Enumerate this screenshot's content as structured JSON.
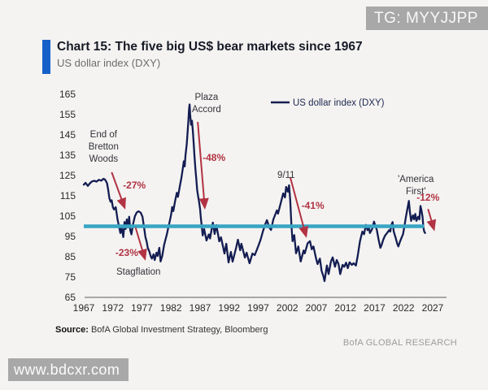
{
  "watermarks": {
    "top": "TG: MYYJJPP",
    "bottom": "www.bdcxr.com"
  },
  "chart_data": {
    "type": "line",
    "title": "Chart 15: The five big US$ bear markets since 1967",
    "subtitle": "US dollar index (DXY)",
    "legend": {
      "label": "US dollar index (DXY)",
      "position": "top-right"
    },
    "xlim": [
      1966.7,
      2029.5
    ],
    "ylim": [
      65,
      165
    ],
    "x_ticks": [
      1967,
      1972,
      1977,
      1982,
      1987,
      1992,
      1997,
      2002,
      2007,
      2012,
      2017,
      2022,
      2027
    ],
    "y_ticks": [
      65,
      75,
      85,
      95,
      105,
      115,
      125,
      135,
      145,
      155,
      165
    ],
    "grid": false,
    "baseline": {
      "value": 100,
      "x_start": 1967,
      "x_end": 2025.5
    },
    "series": [
      {
        "name": "US dollar index (DXY)",
        "color_key": "line",
        "points": [
          [
            1967.0,
            120.5
          ],
          [
            1967.3,
            121.4
          ],
          [
            1967.7,
            119.9
          ],
          [
            1968.0,
            121.0
          ],
          [
            1968.4,
            122.1
          ],
          [
            1968.8,
            122.4
          ],
          [
            1969.2,
            122.0
          ],
          [
            1969.6,
            122.9
          ],
          [
            1970.0,
            122.5
          ],
          [
            1970.4,
            123.4
          ],
          [
            1970.7,
            122.8
          ],
          [
            1971.0,
            121.2
          ],
          [
            1971.2,
            118.0
          ],
          [
            1971.4,
            113.8
          ],
          [
            1971.6,
            112.1
          ],
          [
            1971.8,
            112.8
          ],
          [
            1972.0,
            109.4
          ],
          [
            1972.2,
            108.3
          ],
          [
            1972.5,
            109.4
          ],
          [
            1972.8,
            103.4
          ],
          [
            1973.0,
            100.7
          ],
          [
            1973.3,
            96.7
          ],
          [
            1973.5,
            99.4
          ],
          [
            1973.8,
            94.7
          ],
          [
            1974.0,
            102.1
          ],
          [
            1974.2,
            98.7
          ],
          [
            1974.4,
            103.4
          ],
          [
            1974.6,
            99.4
          ],
          [
            1974.8,
            104.7
          ],
          [
            1975.0,
            98.0
          ],
          [
            1975.2,
            96.0
          ],
          [
            1975.5,
            101.5
          ],
          [
            1975.8,
            105.0
          ],
          [
            1976.1,
            106.8
          ],
          [
            1976.4,
            107.4
          ],
          [
            1976.8,
            106.7
          ],
          [
            1977.1,
            104.7
          ],
          [
            1977.4,
            98.7
          ],
          [
            1977.6,
            94.7
          ],
          [
            1977.8,
            92.7
          ],
          [
            1978.0,
            89.4
          ],
          [
            1978.3,
            87.4
          ],
          [
            1978.5,
            85.4
          ],
          [
            1978.7,
            84.1
          ],
          [
            1979.0,
            86.2
          ],
          [
            1979.2,
            83.4
          ],
          [
            1979.5,
            87.0
          ],
          [
            1979.7,
            85.4
          ],
          [
            1980.0,
            89.4
          ],
          [
            1980.2,
            82.7
          ],
          [
            1980.5,
            85.4
          ],
          [
            1980.8,
            90.7
          ],
          [
            1981.1,
            94.0
          ],
          [
            1981.3,
            96.1
          ],
          [
            1981.5,
            99.0
          ],
          [
            1981.7,
            101.4
          ],
          [
            1982.0,
            105.5
          ],
          [
            1982.2,
            109.5
          ],
          [
            1982.4,
            107.5
          ],
          [
            1982.7,
            112.5
          ],
          [
            1983.0,
            116.5
          ],
          [
            1983.2,
            114.5
          ],
          [
            1983.5,
            119.5
          ],
          [
            1983.8,
            124.0
          ],
          [
            1984.0,
            128.0
          ],
          [
            1984.2,
            132.0
          ],
          [
            1984.35,
            129.5
          ],
          [
            1984.5,
            135.0
          ],
          [
            1984.7,
            140.5
          ],
          [
            1984.85,
            146.0
          ],
          [
            1985.0,
            152.5
          ],
          [
            1985.1,
            157.5
          ],
          [
            1985.2,
            160.0
          ],
          [
            1985.3,
            155.0
          ],
          [
            1985.45,
            150.0
          ],
          [
            1985.6,
            152.0
          ],
          [
            1985.75,
            147.0
          ],
          [
            1985.9,
            141.0
          ],
          [
            1986.05,
            134.0
          ],
          [
            1986.2,
            128.0
          ],
          [
            1986.35,
            123.0
          ],
          [
            1986.5,
            118.0
          ],
          [
            1986.65,
            115.0
          ],
          [
            1986.8,
            112.5
          ],
          [
            1987.0,
            108.5
          ],
          [
            1987.15,
            103.5
          ],
          [
            1987.3,
            100.0
          ],
          [
            1987.45,
            95.5
          ],
          [
            1987.7,
            98.6
          ],
          [
            1988.1,
            93.0
          ],
          [
            1988.5,
            96.0
          ],
          [
            1988.7,
            94.0
          ],
          [
            1989.2,
            101.8
          ],
          [
            1989.5,
            96.2
          ],
          [
            1989.8,
            100.6
          ],
          [
            1990.3,
            92.6
          ],
          [
            1990.6,
            94.6
          ],
          [
            1991.2,
            86.6
          ],
          [
            1991.5,
            91.4
          ],
          [
            1991.9,
            82.2
          ],
          [
            1992.3,
            87.4
          ],
          [
            1992.6,
            82.6
          ],
          [
            1993.2,
            89.4
          ],
          [
            1993.5,
            93.4
          ],
          [
            1993.9,
            88.2
          ],
          [
            1994.1,
            91.4
          ],
          [
            1994.7,
            84.6
          ],
          [
            1995.0,
            87.0
          ],
          [
            1995.5,
            81.8
          ],
          [
            1996.0,
            86.6
          ],
          [
            1996.4,
            85.8
          ],
          [
            1997.0,
            90.2
          ],
          [
            1997.4,
            93.4
          ],
          [
            1997.8,
            97.4
          ],
          [
            1998.2,
            101.0
          ],
          [
            1998.5,
            103.0
          ],
          [
            1998.9,
            99.4
          ],
          [
            1999.2,
            98.2
          ],
          [
            1999.6,
            103.4
          ],
          [
            2000.2,
            107.8
          ],
          [
            2000.4,
            106.2
          ],
          [
            2000.9,
            111.8
          ],
          [
            2001.3,
            116.2
          ],
          [
            2001.6,
            114.2
          ],
          [
            2001.8,
            119.4
          ],
          [
            2002.1,
            117.0
          ],
          [
            2002.3,
            120.2
          ],
          [
            2002.5,
            113.0
          ],
          [
            2002.7,
            100.5
          ],
          [
            2002.9,
            92.7
          ],
          [
            2003.2,
            95.7
          ],
          [
            2003.5,
            86.7
          ],
          [
            2003.9,
            90.1
          ],
          [
            2004.3,
            82.7
          ],
          [
            2004.8,
            88.1
          ],
          [
            2005.0,
            86.7
          ],
          [
            2005.5,
            91.7
          ],
          [
            2005.9,
            92.7
          ],
          [
            2006.2,
            88.7
          ],
          [
            2006.5,
            90.1
          ],
          [
            2006.9,
            84.7
          ],
          [
            2007.2,
            81.4
          ],
          [
            2007.6,
            84.1
          ],
          [
            2007.9,
            78.1
          ],
          [
            2008.2,
            75.4
          ],
          [
            2008.4,
            73.0
          ],
          [
            2008.8,
            80.7
          ],
          [
            2009.1,
            76.5
          ],
          [
            2009.5,
            82.7
          ],
          [
            2009.8,
            84.7
          ],
          [
            2010.2,
            80.1
          ],
          [
            2010.5,
            83.4
          ],
          [
            2010.8,
            81.4
          ],
          [
            2011.1,
            76.5
          ],
          [
            2011.5,
            81.0
          ],
          [
            2011.8,
            80.1
          ],
          [
            2012.1,
            82.1
          ],
          [
            2012.4,
            79.4
          ],
          [
            2012.7,
            82.3
          ],
          [
            2013.1,
            81.0
          ],
          [
            2013.4,
            81.8
          ],
          [
            2013.8,
            80.7
          ],
          [
            2014.1,
            85.4
          ],
          [
            2014.5,
            92.7
          ],
          [
            2014.9,
            97.4
          ],
          [
            2015.2,
            96.1
          ],
          [
            2015.5,
            100.7
          ],
          [
            2015.8,
            98.1
          ],
          [
            2016.0,
            100.1
          ],
          [
            2016.2,
            96.7
          ],
          [
            2016.6,
            98.7
          ],
          [
            2016.9,
            102.3
          ],
          [
            2017.4,
            98.1
          ],
          [
            2017.7,
            93.4
          ],
          [
            2018.0,
            89.4
          ],
          [
            2018.2,
            90.7
          ],
          [
            2018.5,
            93.4
          ],
          [
            2018.8,
            95.4
          ],
          [
            2019.1,
            96.5
          ],
          [
            2019.5,
            98.1
          ],
          [
            2019.7,
            97.4
          ],
          [
            2019.9,
            100.7
          ],
          [
            2020.1,
            102.1
          ],
          [
            2020.3,
            97.4
          ],
          [
            2020.6,
            94.7
          ],
          [
            2020.9,
            91.4
          ],
          [
            2021.1,
            90.1
          ],
          [
            2021.4,
            92.7
          ],
          [
            2021.6,
            94.1
          ],
          [
            2021.9,
            96.1
          ],
          [
            2022.1,
            99.4
          ],
          [
            2022.4,
            104.7
          ],
          [
            2022.7,
            109.4
          ],
          [
            2022.9,
            112.5
          ],
          [
            2023.1,
            106.7
          ],
          [
            2023.3,
            102.7
          ],
          [
            2023.6,
            105.4
          ],
          [
            2023.8,
            103.4
          ],
          [
            2024.0,
            106.1
          ],
          [
            2024.2,
            102.7
          ],
          [
            2024.5,
            104.7
          ],
          [
            2024.7,
            103.4
          ],
          [
            2024.9,
            110.0
          ],
          [
            2025.1,
            107.4
          ],
          [
            2025.25,
            104.7
          ],
          [
            2025.4,
            99.4
          ],
          [
            2025.55,
            97.4
          ],
          [
            2025.7,
            96.7
          ]
        ]
      }
    ],
    "annotations": [
      {
        "id": "end-of-bretton-woods",
        "style": "event",
        "lines": [
          "End of",
          "Bretton",
          "Woods"
        ],
        "year": 1970.4,
        "value": 145.5
      },
      {
        "id": "drawdown-27",
        "style": "drawdown",
        "lines": [
          "-27%"
        ],
        "year": 1975.7,
        "value": 120.2
      },
      {
        "id": "drawdown-23",
        "style": "drawdown",
        "lines": [
          "-23%"
        ],
        "year": 1974.4,
        "value": 87.0
      },
      {
        "id": "stagflation",
        "style": "event",
        "lines": [
          "Stagflation"
        ],
        "year": 1976.4,
        "value": 77.8
      },
      {
        "id": "plaza-accord",
        "style": "event",
        "lines": [
          "Plaza",
          "Accord"
        ],
        "year": 1988.1,
        "value": 163.8
      },
      {
        "id": "drawdown-48",
        "style": "drawdown",
        "lines": [
          "-48%"
        ],
        "year": 1989.4,
        "value": 133.8
      },
      {
        "id": "nine-eleven",
        "style": "event",
        "lines": [
          "9/11"
        ],
        "year": 2001.8,
        "value": 125.4
      },
      {
        "id": "drawdown-41",
        "style": "drawdown",
        "lines": [
          "-41%"
        ],
        "year": 2006.4,
        "value": 110.2
      },
      {
        "id": "america-first",
        "style": "event",
        "lines": [
          "'America",
          "First'"
        ],
        "year": 2024.1,
        "value": 123.4
      },
      {
        "id": "drawdown-12",
        "style": "drawdown",
        "lines": [
          "-12%"
        ],
        "year": 2026.2,
        "value": 114.2
      }
    ],
    "arrows": [
      {
        "id": "arrow-bretton",
        "from": [
          1971.8,
          126.6
        ],
        "to": [
          1974.0,
          109.4
        ]
      },
      {
        "id": "arrow-stagflation",
        "from": [
          1975.9,
          99.4
        ],
        "to": [
          1977.5,
          84.2
        ]
      },
      {
        "id": "arrow-plaza",
        "from": [
          1986.6,
          151.4
        ],
        "to": [
          1987.8,
          109.4
        ]
      },
      {
        "id": "arrow-911",
        "from": [
          2002.5,
          124.2
        ],
        "to": [
          2005.2,
          95.4
        ]
      },
      {
        "id": "arrow-america-first",
        "from": [
          2026.2,
          108.5
        ],
        "to": [
          2027.2,
          98.7
        ]
      }
    ]
  },
  "source": {
    "label": "Source:",
    "text": "BofA Global Investment Strategy, Bloomberg"
  },
  "brand": "BofA GLOBAL RESEARCH",
  "colors": {
    "accent_bar": "#1560c8",
    "line": "#141d52",
    "baseline": "#38a5c4",
    "red": "#b23343",
    "axis": "#8f8f8f"
  }
}
